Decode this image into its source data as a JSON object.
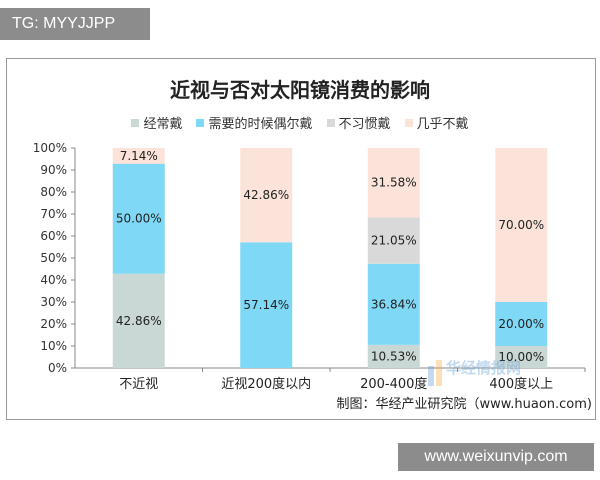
{
  "tag": "TG: MYYJJPP",
  "footer": "www.weixunvip.com",
  "source": "制图：华经产业研究院（www.huaon.com)",
  "watermark": "华经情报网",
  "colors": {
    "经常戴": "#c9d8d4",
    "需要的时候偶尔戴": "#7fd8f6",
    "不习惯戴": "#d9d9d9",
    "几乎不戴": "#fbe3da"
  },
  "chart_data": {
    "type": "bar",
    "stacked": true,
    "title": "近视与否对太阳镜消费的影响",
    "categories": [
      "不近视",
      "近视200度以内",
      "200-400度",
      "400度以上"
    ],
    "series": [
      {
        "name": "经常戴",
        "values": [
          42.86,
          0,
          10.53,
          10.0
        ]
      },
      {
        "name": "需要的时候偶尔戴",
        "values": [
          50.0,
          57.14,
          36.84,
          20.0
        ]
      },
      {
        "name": "不习惯戴",
        "values": [
          0,
          0,
          21.05,
          0
        ]
      },
      {
        "name": "几乎不戴",
        "values": [
          7.14,
          42.86,
          31.58,
          70.0
        ]
      }
    ],
    "data_labels": [
      [
        "42.86%",
        "",
        "10.53%",
        "10.00%"
      ],
      [
        "50.00%",
        "57.14%",
        "36.84%",
        "20.00%"
      ],
      [
        "",
        "",
        "21.05%",
        ""
      ],
      [
        "7.14%",
        "42.86%",
        "31.58%",
        "70.00%"
      ]
    ],
    "yticks": [
      "0%",
      "10%",
      "20%",
      "30%",
      "40%",
      "50%",
      "60%",
      "70%",
      "80%",
      "90%",
      "100%"
    ],
    "ylim": [
      0,
      100
    ],
    "legend_position": "top",
    "grid": false
  }
}
